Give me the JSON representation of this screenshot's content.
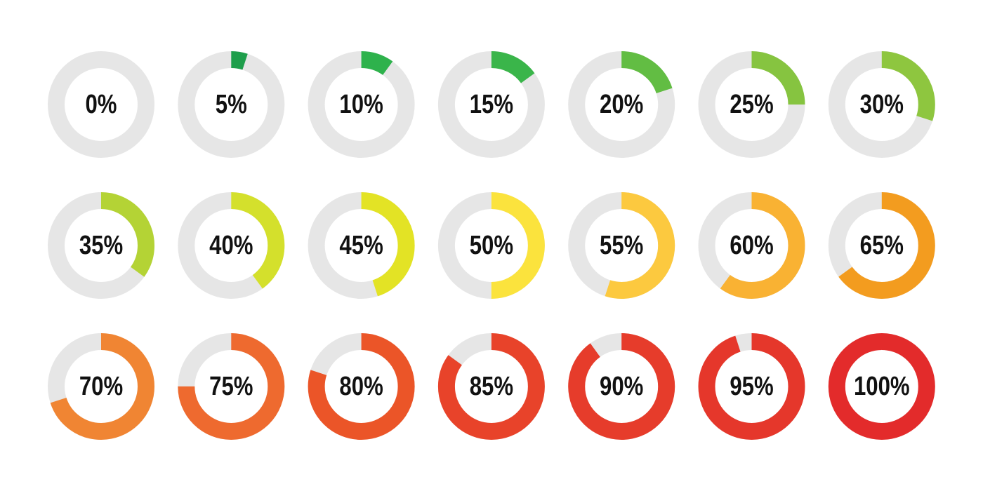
{
  "track_color": "#e6e6e6",
  "gauges": [
    {
      "label": "0%",
      "value": 0,
      "color": "#1f9d4a"
    },
    {
      "label": "5%",
      "value": 5,
      "color": "#1e9e4b"
    },
    {
      "label": "10%",
      "value": 10,
      "color": "#2eb24c"
    },
    {
      "label": "15%",
      "value": 15,
      "color": "#3ab54a"
    },
    {
      "label": "20%",
      "value": 20,
      "color": "#62bd43"
    },
    {
      "label": "25%",
      "value": 25,
      "color": "#86c440"
    },
    {
      "label": "30%",
      "value": 30,
      "color": "#8ec63f"
    },
    {
      "label": "35%",
      "value": 35,
      "color": "#b4d335"
    },
    {
      "label": "40%",
      "value": 40,
      "color": "#d4e02c"
    },
    {
      "label": "45%",
      "value": 45,
      "color": "#e3e325"
    },
    {
      "label": "50%",
      "value": 50,
      "color": "#fbe33d"
    },
    {
      "label": "55%",
      "value": 55,
      "color": "#fcc93f"
    },
    {
      "label": "60%",
      "value": 60,
      "color": "#f9b233"
    },
    {
      "label": "65%",
      "value": 65,
      "color": "#f39c1f"
    },
    {
      "label": "70%",
      "value": 70,
      "color": "#f08533"
    },
    {
      "label": "75%",
      "value": 75,
      "color": "#ee6a2f"
    },
    {
      "label": "80%",
      "value": 80,
      "color": "#eb5528"
    },
    {
      "label": "85%",
      "value": 85,
      "color": "#e8432a"
    },
    {
      "label": "90%",
      "value": 90,
      "color": "#e63c2b"
    },
    {
      "label": "95%",
      "value": 95,
      "color": "#e5372b"
    },
    {
      "label": "100%",
      "value": 100,
      "color": "#e32b2b"
    }
  ]
}
